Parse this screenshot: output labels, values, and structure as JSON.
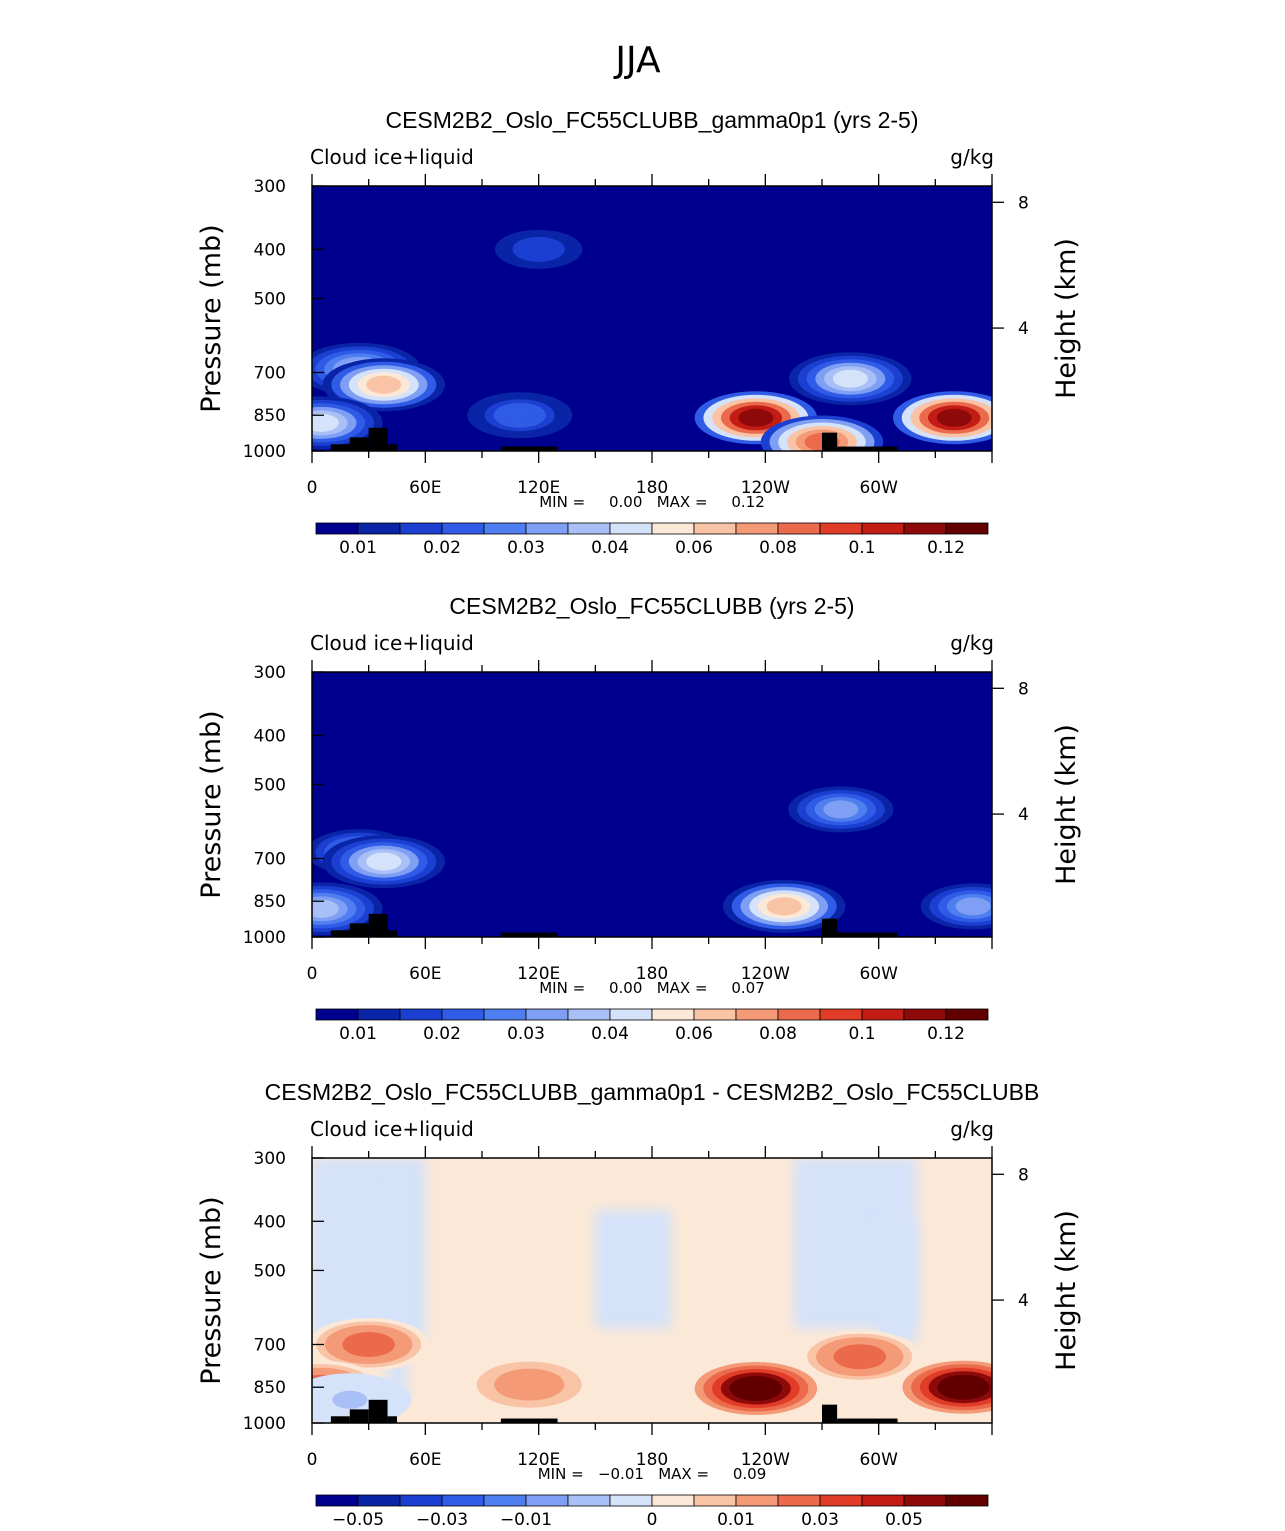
{
  "figure": {
    "suptitle": "JJA"
  },
  "colors": {
    "ocean_bg": "#00008f",
    "land": "#000000",
    "abs_palette": [
      "#00008f",
      "#0a24a8",
      "#1b3fd0",
      "#2f5be6",
      "#4f7ef0",
      "#7f9ff4",
      "#a9c0f7",
      "#d4e2fa",
      "#fbe8d7",
      "#f9c3a6",
      "#f49a77",
      "#ec6a4c",
      "#e03c27",
      "#c21c14",
      "#8e0a0a",
      "#620000"
    ],
    "diff_palette": [
      "#00008f",
      "#0a24a8",
      "#1b3fd0",
      "#2f5be6",
      "#4f7ef0",
      "#7f9ff4",
      "#a9c0f7",
      "#d4e2fa",
      "#fbe8d7",
      "#f9c3a6",
      "#f49a77",
      "#ec6a4c",
      "#e03c27",
      "#c21c14",
      "#8e0a0a",
      "#620000"
    ]
  },
  "chart_data": [
    {
      "type": "heatmap",
      "title": "CESM2B2_Oslo_FC55CLUBB_gamma0p1 (yrs 2-5)",
      "left_string": "Cloud ice+liquid",
      "right_string": "g/kg",
      "ylabel": "Pressure (mb)",
      "y2label": "Height (km)",
      "xticklabels": [
        "0",
        "60E",
        "120E",
        "180",
        "120W",
        "60W"
      ],
      "yticklabels": [
        "300",
        "400",
        "500",
        "700",
        "850",
        "1000"
      ],
      "y2ticklabels": [
        "8",
        "4"
      ],
      "min_max_text": "MIN =     0.00   MAX =     0.12",
      "min": 0.0,
      "max": 0.12,
      "colorbar_labels": [
        "0.01",
        "0.02",
        "0.03",
        "0.04",
        "0.06",
        "0.08",
        "0.1",
        "0.12"
      ],
      "features": [
        {
          "lon": 25,
          "p": 690,
          "value": 0.035
        },
        {
          "lon": 38,
          "p": 740,
          "value": 0.06
        },
        {
          "lon": 5,
          "p": 880,
          "value": 0.04
        },
        {
          "lon": 110,
          "p": 850,
          "value": 0.02
        },
        {
          "lon": 235,
          "p": 860,
          "value": 0.11
        },
        {
          "lon": 270,
          "p": 960,
          "value": 0.08
        },
        {
          "lon": 285,
          "p": 720,
          "value": 0.04
        },
        {
          "lon": 340,
          "p": 860,
          "value": 0.11
        },
        {
          "lon": 120,
          "p": 400,
          "value": 0.015
        }
      ]
    },
    {
      "type": "heatmap",
      "title": "CESM2B2_Oslo_FC55CLUBB (yrs 2-5)",
      "left_string": "Cloud ice+liquid",
      "right_string": "g/kg",
      "ylabel": "Pressure (mb)",
      "y2label": "Height (km)",
      "xticklabels": [
        "0",
        "60E",
        "120E",
        "180",
        "120W",
        "60W"
      ],
      "yticklabels": [
        "300",
        "400",
        "500",
        "700",
        "850",
        "1000"
      ],
      "y2ticklabels": [
        "8",
        "4"
      ],
      "min_max_text": "MIN =     0.00   MAX =     0.07",
      "min": 0.0,
      "max": 0.07,
      "colorbar_labels": [
        "0.01",
        "0.02",
        "0.03",
        "0.04",
        "0.06",
        "0.08",
        "0.1",
        "0.12"
      ],
      "features": [
        {
          "lon": 25,
          "p": 680,
          "value": 0.025
        },
        {
          "lon": 38,
          "p": 710,
          "value": 0.04
        },
        {
          "lon": 5,
          "p": 880,
          "value": 0.035
        },
        {
          "lon": 250,
          "p": 870,
          "value": 0.06
        },
        {
          "lon": 280,
          "p": 560,
          "value": 0.03
        },
        {
          "lon": 350,
          "p": 870,
          "value": 0.03
        }
      ]
    },
    {
      "type": "heatmap",
      "title": "CESM2B2_Oslo_FC55CLUBB_gamma0p1 - CESM2B2_Oslo_FC55CLUBB",
      "left_string": "Cloud ice+liquid",
      "right_string": "g/kg",
      "ylabel": "Pressure (mb)",
      "y2label": "Height (km)",
      "xticklabels": [
        "0",
        "60E",
        "120E",
        "180",
        "120W",
        "60W"
      ],
      "yticklabels": [
        "300",
        "400",
        "500",
        "700",
        "850",
        "1000"
      ],
      "y2ticklabels": [
        "8",
        "4"
      ],
      "min_max_text": "MIN =   −0.01   MAX =     0.09",
      "min": -0.01,
      "max": 0.09,
      "colorbar_labels": [
        "−0.05",
        "−0.03",
        "−0.01",
        "0",
        "0.01",
        "0.03",
        "0.05"
      ],
      "features": [
        {
          "lon": 30,
          "p": 700,
          "value": 0.03
        },
        {
          "lon": 5,
          "p": 850,
          "value": 0.03
        },
        {
          "lon": 115,
          "p": 840,
          "value": 0.02
        },
        {
          "lon": 235,
          "p": 855,
          "value": 0.08
        },
        {
          "lon": 290,
          "p": 740,
          "value": 0.03
        },
        {
          "lon": 345,
          "p": 850,
          "value": 0.08
        },
        {
          "lon": 20,
          "p": 900,
          "value": -0.005
        }
      ]
    }
  ]
}
